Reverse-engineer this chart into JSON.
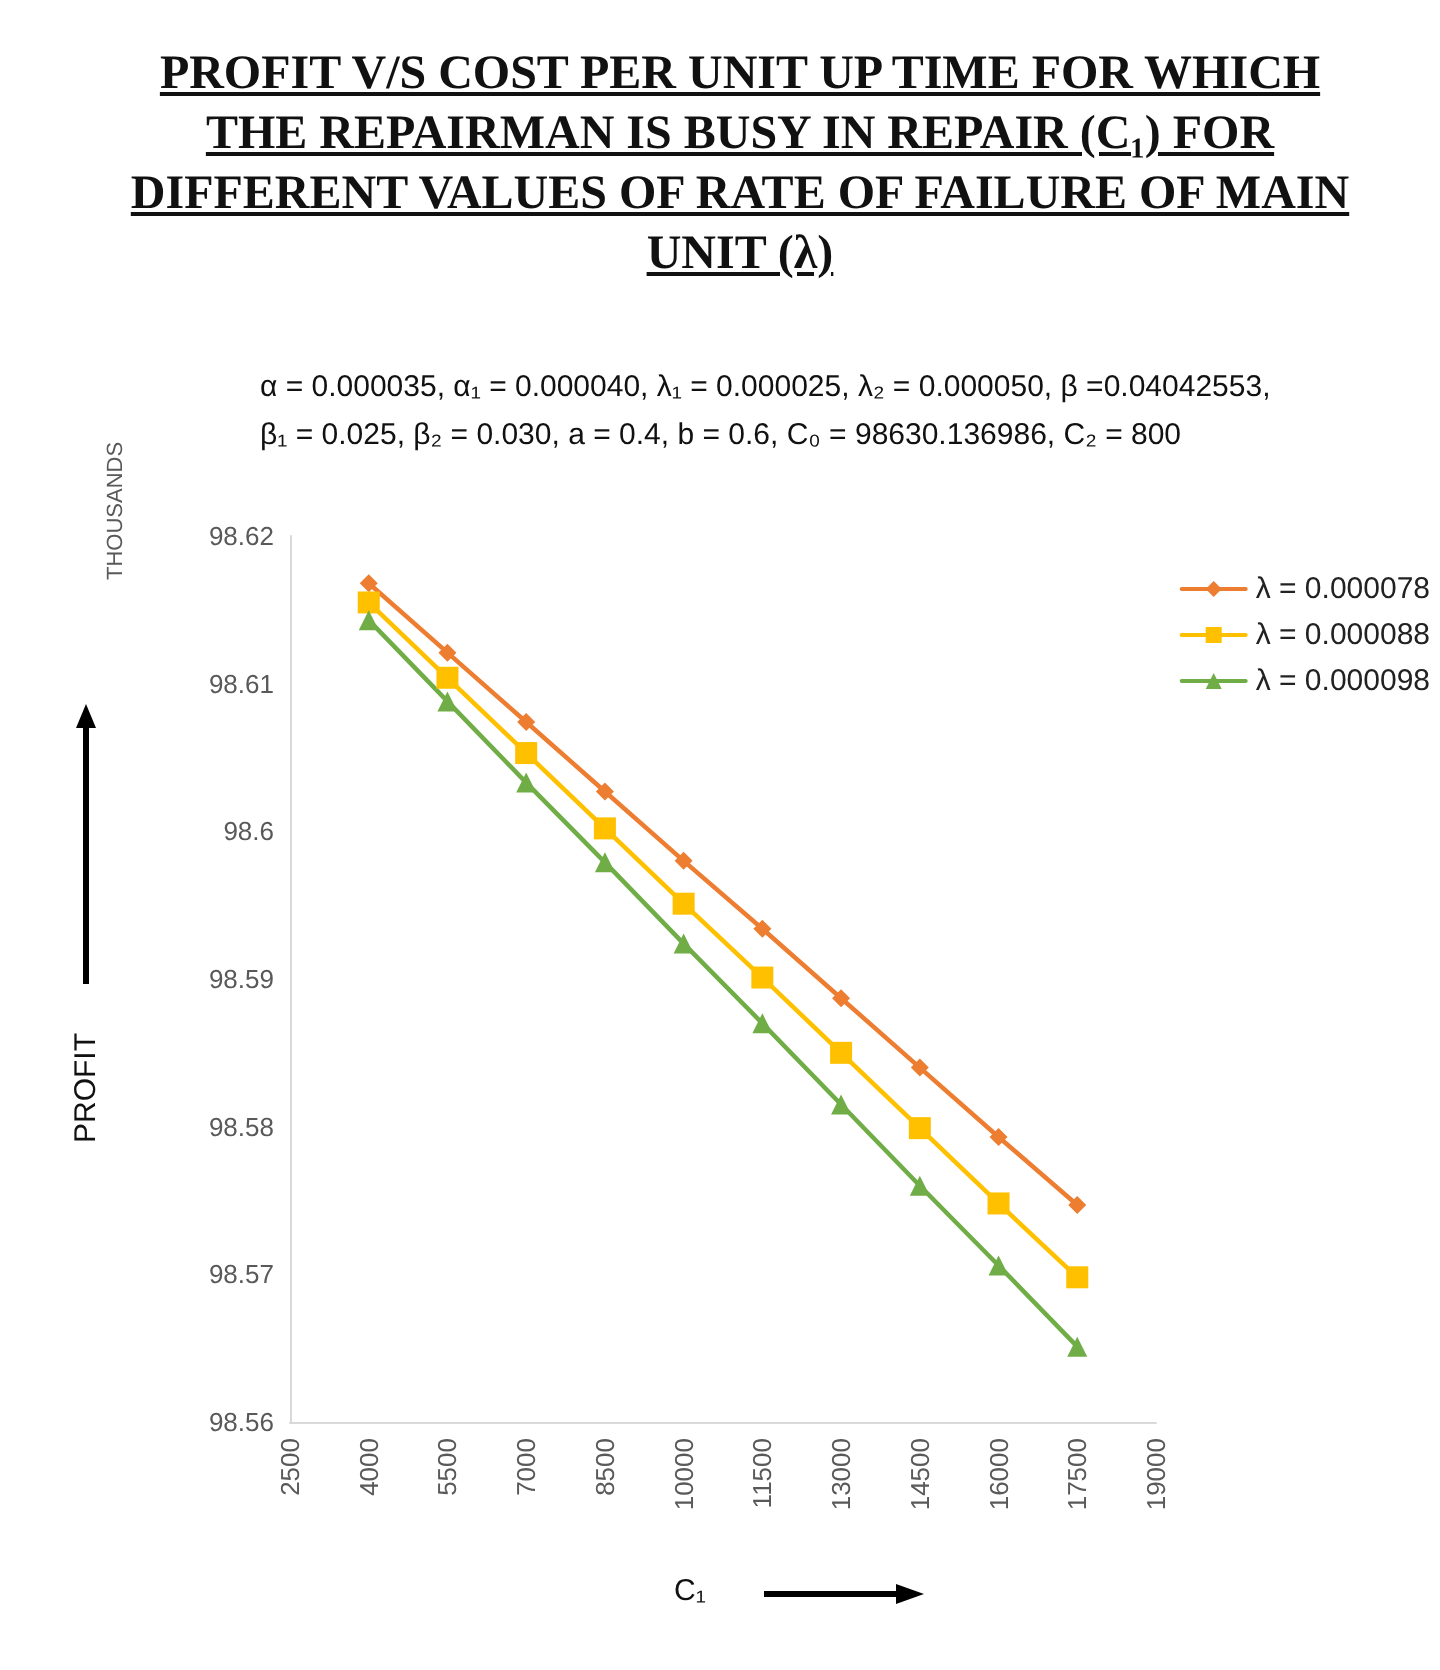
{
  "chart_data": {
    "type": "line",
    "title": "PROFIT V/S  COST PER UNIT UP TIME FOR WHICH THE REPAIRMAN IS BUSY IN REPAIR (C₁) FOR DIFFERENT VALUES OF RATE OF FAILURE OF MAIN UNIT (λ)",
    "subtitle": "α = 0.000035, α₁ = 0.000040, λ₁ = 0.000025, λ₂ = 0.000050, β =0.04042553, β₁ = 0.025, β₂ = 0.030, a = 0.4, b = 0.6, C₀ = 98630.136986, C₂ = 800",
    "xlabel": "C₁",
    "ylabel": "PROFIT",
    "annotations": [
      "THOUSANDS"
    ],
    "x": [
      4000,
      5500,
      7000,
      8500,
      10000,
      11500,
      13000,
      14500,
      16000,
      17500
    ],
    "series": [
      {
        "name": "λ = 0.000078",
        "color": "#ed7d31",
        "marker": "diamond",
        "values": [
          98.6168,
          98.6121,
          98.6074,
          98.6027,
          98.598,
          98.5934,
          98.5887,
          98.584,
          98.5793,
          98.5747
        ]
      },
      {
        "name": "λ = 0.000088",
        "color": "#ffc000",
        "marker": "square",
        "values": [
          98.6155,
          98.6104,
          98.6053,
          98.6002,
          98.5951,
          98.5901,
          98.585,
          98.5799,
          98.5748,
          98.5698
        ]
      },
      {
        "name": "λ = 0.000098",
        "color": "#70ad47",
        "marker": "triangle",
        "values": [
          98.6143,
          98.6088,
          98.6033,
          98.5979,
          98.5924,
          98.587,
          98.5815,
          98.576,
          98.5706,
          98.5651
        ]
      }
    ],
    "xlim": [
      2500,
      19000
    ],
    "xticks": [
      2500,
      4000,
      5500,
      7000,
      8500,
      10000,
      11500,
      13000,
      14500,
      16000,
      17500,
      19000
    ],
    "ylim": [
      98.56,
      98.62
    ],
    "yticks": [
      98.56,
      98.57,
      98.58,
      98.59,
      98.6,
      98.61,
      98.62
    ],
    "grid": false,
    "legend": "right",
    "line_style": "solid"
  }
}
